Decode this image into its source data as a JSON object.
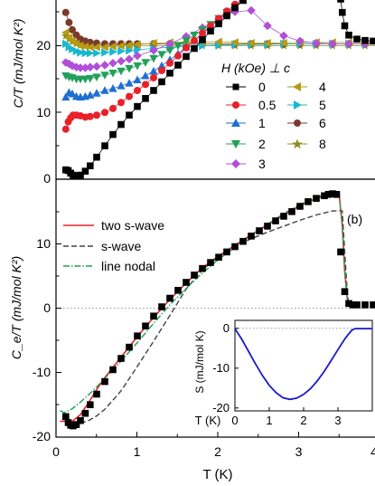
{
  "figure": {
    "x_axis_label": "T (K)",
    "x_ticks": [
      "0",
      "1",
      "2",
      "3",
      "4"
    ]
  },
  "chart_data": [
    {
      "type": "scatter",
      "panel": "top",
      "ylabel": "C/T (mJ/mol K²)",
      "y_ticks": [
        "0",
        "10",
        "20"
      ],
      "xlim": [
        0,
        4
      ],
      "ylim": [
        0,
        27
      ],
      "grid": false,
      "legend_title": "H (kOe) ⊥ c",
      "legend_position": "center-right",
      "series": [
        {
          "name": "0",
          "color": "#000000",
          "marker": "square",
          "x": [
            0.12,
            0.15,
            0.18,
            0.21,
            0.25,
            0.3,
            0.36,
            0.42,
            0.5,
            0.6,
            0.7,
            0.8,
            0.9,
            1.0,
            1.1,
            1.2,
            1.3,
            1.4,
            1.5,
            1.6,
            1.7,
            1.8,
            1.9,
            2.0,
            2.1,
            2.2,
            2.3,
            2.4,
            2.5,
            2.6,
            2.7,
            2.8,
            2.9,
            3.0,
            3.1,
            3.2,
            3.3,
            3.4,
            3.45,
            3.5,
            3.52,
            3.55,
            3.6,
            3.7,
            3.8,
            3.9,
            4.0
          ],
          "y": [
            1.4,
            1.3,
            0.9,
            0.6,
            0.5,
            0.6,
            1.2,
            2.0,
            3.3,
            5.0,
            6.7,
            8.2,
            9.6,
            10.9,
            12.1,
            13.3,
            14.6,
            15.9,
            17.1,
            18.4,
            19.6,
            20.9,
            22.2,
            23.3,
            24.5,
            25.7,
            26.8,
            27.5,
            27.8,
            28.0,
            28.0,
            28.0,
            28.0,
            28.0,
            28.0,
            28.0,
            28.0,
            28.0,
            28.0,
            27.0,
            25.0,
            23.0,
            21.6,
            21.0,
            20.8,
            20.7,
            20.6
          ]
        },
        {
          "name": "0.5",
          "color": "#e8202a",
          "marker": "circle",
          "x": [
            0.12,
            0.15,
            0.18,
            0.21,
            0.25,
            0.3,
            0.36,
            0.42,
            0.5,
            0.6,
            0.7,
            0.8,
            0.9,
            1.0,
            1.1,
            1.2,
            1.3,
            1.4,
            1.5,
            1.6,
            1.7,
            1.8,
            1.9,
            2.0,
            2.1,
            2.2,
            2.3,
            2.4
          ],
          "y": [
            7.5,
            8.6,
            9.2,
            9.6,
            9.6,
            9.5,
            9.3,
            9.4,
            9.6,
            10.0,
            10.6,
            11.5,
            12.4,
            13.3,
            14.2,
            15.2,
            16.3,
            17.4,
            18.5,
            19.7,
            20.8,
            21.9,
            23.0,
            24.1,
            25.2,
            26.2,
            27.2,
            28.0
          ]
        },
        {
          "name": "1",
          "color": "#1f6fd1",
          "marker": "triangle-up",
          "x": [
            0.12,
            0.16,
            0.2,
            0.25,
            0.3,
            0.36,
            0.42,
            0.5,
            0.6,
            0.7,
            0.8,
            0.9,
            1.0,
            1.1,
            1.2,
            1.3,
            1.4,
            1.5,
            1.6,
            1.7,
            1.8,
            1.9,
            2.0,
            2.1,
            2.2,
            2.3,
            2.4
          ],
          "y": [
            12.3,
            13.0,
            12.8,
            12.4,
            12.3,
            12.4,
            12.6,
            12.9,
            13.3,
            13.6,
            14.0,
            14.4,
            14.9,
            15.5,
            16.2,
            17.0,
            17.9,
            18.8,
            19.8,
            20.8,
            21.8,
            22.9,
            23.9,
            24.9,
            25.9,
            26.9,
            27.8
          ]
        },
        {
          "name": "2",
          "color": "#22a05a",
          "marker": "triangle-down",
          "x": [
            0.12,
            0.16,
            0.2,
            0.25,
            0.3,
            0.36,
            0.42,
            0.5,
            0.6,
            0.7,
            0.8,
            0.9,
            1.0,
            1.1,
            1.2,
            1.3,
            1.4,
            1.5,
            1.6,
            1.7,
            1.8,
            1.9,
            2.0,
            2.1,
            2.2,
            2.3,
            2.4
          ],
          "y": [
            15.5,
            15.3,
            15.2,
            15.0,
            15.0,
            15.0,
            15.1,
            15.3,
            15.6,
            15.9,
            16.2,
            16.6,
            17.0,
            17.5,
            18.1,
            18.7,
            19.3,
            20.0,
            20.8,
            21.6,
            22.4,
            23.2,
            24.1,
            25.0,
            25.9,
            26.9,
            27.8
          ]
        },
        {
          "name": "3",
          "color": "#b04fd8",
          "marker": "diamond",
          "x": [
            0.12,
            0.16,
            0.2,
            0.25,
            0.3,
            0.36,
            0.42,
            0.5,
            0.6,
            0.7,
            0.8,
            0.9,
            1.0,
            1.2,
            1.4,
            1.6,
            1.8,
            2.0,
            2.2,
            2.4,
            2.6,
            2.8,
            3.0,
            3.2,
            3.4,
            3.6,
            3.8,
            4.0
          ],
          "y": [
            17.5,
            17.3,
            17.0,
            16.8,
            16.7,
            16.7,
            16.8,
            16.9,
            17.1,
            17.4,
            17.7,
            18.0,
            18.5,
            19.3,
            20.3,
            21.4,
            22.7,
            24.0,
            25.1,
            25.3,
            23.0,
            21.5,
            20.7,
            20.4,
            20.3,
            20.3,
            20.3,
            20.3
          ]
        },
        {
          "name": "4",
          "color": "#b59a12",
          "marker": "triangle-left",
          "x": [
            0.12,
            0.16,
            0.2,
            0.25,
            0.3,
            0.36,
            0.42,
            0.5,
            0.6,
            0.7,
            0.8,
            0.9,
            1.0,
            1.2,
            1.4,
            1.6,
            1.8,
            2.0,
            2.2,
            2.4,
            2.6,
            2.8,
            3.0,
            3.2,
            3.4,
            3.6,
            3.8,
            4.0
          ],
          "y": [
            22.0,
            21.2,
            20.7,
            20.3,
            20.0,
            19.9,
            19.8,
            19.8,
            19.8,
            19.9,
            20.0,
            20.1,
            20.2,
            20.4,
            20.5,
            20.6,
            20.6,
            20.6,
            20.5,
            20.4,
            20.4,
            20.4,
            20.5,
            20.5,
            20.5,
            20.5,
            20.5,
            20.5
          ]
        },
        {
          "name": "5",
          "color": "#18b8cf",
          "marker": "triangle-right",
          "x": [
            0.12,
            0.16,
            0.2,
            0.25,
            0.3,
            0.36,
            0.42,
            0.5,
            0.6,
            0.7,
            0.8,
            0.9,
            1.0,
            1.2,
            1.4,
            1.6,
            1.8,
            2.0,
            2.2,
            2.4,
            2.6,
            2.8,
            3.0,
            3.2,
            3.4,
            3.6,
            3.8,
            4.0
          ],
          "y": [
            20.3,
            19.8,
            19.5,
            19.2,
            19.0,
            18.9,
            18.9,
            18.9,
            19.0,
            19.1,
            19.2,
            19.3,
            19.4,
            19.6,
            19.8,
            19.9,
            20.0,
            20.1,
            20.2,
            20.2,
            20.2,
            20.3,
            20.3,
            20.3,
            20.3,
            20.3,
            20.3,
            20.3
          ]
        },
        {
          "name": "6",
          "color": "#7a3b2e",
          "marker": "circle",
          "x": [
            0.12,
            0.16,
            0.2,
            0.25,
            0.3,
            0.36,
            0.42,
            0.5,
            0.6,
            0.7,
            0.8,
            0.9,
            1.0,
            1.2,
            1.4,
            1.6,
            1.8,
            2.0,
            2.2,
            2.4,
            2.6,
            2.8,
            3.0,
            3.2,
            3.4,
            3.6,
            3.8,
            4.0
          ],
          "y": [
            25.0,
            23.5,
            22.4,
            21.6,
            21.0,
            20.7,
            20.5,
            20.4,
            20.3,
            20.3,
            20.3,
            20.3,
            20.3,
            20.3,
            20.3,
            20.3,
            20.3,
            20.3,
            20.3,
            20.3,
            20.3,
            20.3,
            20.3,
            20.3,
            20.3,
            20.3,
            20.3,
            20.3
          ]
        },
        {
          "name": "8",
          "color": "#8f8a1e",
          "marker": "star",
          "x": [
            0.12,
            0.16,
            0.2,
            0.25,
            0.3,
            0.36,
            0.42,
            0.5,
            0.6,
            0.7,
            0.8,
            0.9,
            1.0,
            1.2,
            1.4,
            1.6,
            1.8,
            2.0,
            2.2,
            2.4,
            2.6,
            2.8,
            3.0,
            3.2,
            3.4,
            3.6,
            3.8,
            4.0
          ],
          "y": [
            21.5,
            21.0,
            20.6,
            20.3,
            20.1,
            20.0,
            20.0,
            20.0,
            20.0,
            20.0,
            20.0,
            20.0,
            20.0,
            20.0,
            20.0,
            20.0,
            20.0,
            20.0,
            20.0,
            20.0,
            20.0,
            20.0,
            20.0,
            20.0,
            20.0,
            20.0,
            20.0,
            20.0
          ]
        }
      ]
    },
    {
      "type": "line",
      "panel": "bottom",
      "panel_label": "(b)",
      "ylabel": "C_e/T (mJ/mol K²)",
      "y_ticks": [
        "-20",
        "-10",
        "0",
        "10"
      ],
      "xlim": [
        0,
        4
      ],
      "ylim": [
        -20,
        19
      ],
      "grid": false,
      "zero_line": "dotted",
      "legend_position": "top-left",
      "data_points": {
        "name": "",
        "color": "#000000",
        "marker": "square",
        "x": [
          0.12,
          0.15,
          0.18,
          0.21,
          0.25,
          0.3,
          0.36,
          0.42,
          0.5,
          0.6,
          0.7,
          0.8,
          0.9,
          1.0,
          1.1,
          1.2,
          1.3,
          1.4,
          1.5,
          1.6,
          1.7,
          1.8,
          1.9,
          2.0,
          2.1,
          2.2,
          2.3,
          2.4,
          2.5,
          2.6,
          2.7,
          2.8,
          2.9,
          3.0,
          3.1,
          3.2,
          3.3,
          3.35,
          3.4,
          3.45,
          3.5,
          3.55,
          3.6,
          3.65,
          3.7,
          3.8,
          3.9,
          4.0
        ],
        "y": [
          -16.9,
          -17.8,
          -18.2,
          -18.3,
          -18.1,
          -17.5,
          -16.4,
          -15.1,
          -13.5,
          -11.6,
          -9.8,
          -8.1,
          -6.4,
          -4.7,
          -3.2,
          -1.7,
          -0.3,
          1.0,
          2.2,
          3.4,
          4.5,
          5.5,
          6.4,
          7.2,
          8.0,
          8.8,
          9.6,
          10.4,
          11.2,
          11.9,
          12.7,
          13.4,
          14.1,
          14.9,
          15.6,
          16.1,
          16.5,
          16.7,
          16.8,
          16.7,
          8.0,
          2.0,
          0.2,
          0.0,
          0.0,
          0.0,
          0.0,
          0.0
        ]
      },
      "series": [
        {
          "name": "two s-wave",
          "color": "#e8202a",
          "style": "solid",
          "x": [
            0.05,
            0.1,
            0.2,
            0.3,
            0.4,
            0.5,
            0.6,
            0.8,
            1.0,
            1.2,
            1.4,
            1.6,
            1.8,
            2.0,
            2.2,
            2.4,
            2.6,
            2.8,
            3.0,
            3.2,
            3.4,
            3.48,
            3.52,
            3.55,
            3.58,
            3.6
          ],
          "y": [
            -17.6,
            -17.6,
            -17.6,
            -16.6,
            -14.8,
            -12.8,
            -11.0,
            -7.9,
            -4.8,
            -1.9,
            0.8,
            3.3,
            5.6,
            7.4,
            9.0,
            10.6,
            12.1,
            13.6,
            15.0,
            16.1,
            16.7,
            16.8,
            12.0,
            5.0,
            1.0,
            0.0
          ]
        },
        {
          "name": "s-wave",
          "color": "#444444",
          "style": "dashed",
          "x": [
            0.2,
            0.3,
            0.4,
            0.5,
            0.6,
            0.8,
            1.0,
            1.2,
            1.4,
            1.6,
            1.8,
            2.0,
            2.2,
            2.4,
            2.6,
            2.8,
            3.0,
            3.2,
            3.4,
            3.52,
            3.55,
            3.58,
            3.6
          ],
          "y": [
            -18.0,
            -17.9,
            -17.5,
            -16.8,
            -15.8,
            -13.0,
            -9.3,
            -5.5,
            -1.6,
            2.4,
            5.3,
            7.3,
            8.8,
            10.0,
            11.0,
            11.9,
            12.8,
            13.6,
            14.2,
            14.2,
            8.0,
            2.0,
            0.0
          ]
        },
        {
          "name": "line nodal",
          "color": "#22a05a",
          "style": "dashdot",
          "x": [
            0.05,
            0.1,
            0.2,
            0.3,
            0.4,
            0.5,
            0.6,
            0.8,
            1.0,
            1.2,
            1.4,
            1.6,
            1.8,
            2.0,
            2.2,
            2.4,
            2.6,
            2.8,
            3.0,
            3.2,
            3.4,
            3.48,
            3.52,
            3.55,
            3.58,
            3.6
          ],
          "y": [
            -16.0,
            -16.3,
            -15.7,
            -14.7,
            -13.6,
            -12.4,
            -11.1,
            -8.5,
            -5.7,
            -2.8,
            0.0,
            2.5,
            4.8,
            6.9,
            8.7,
            10.5,
            12.2,
            13.8,
            15.2,
            16.3,
            16.9,
            17.0,
            12.0,
            5.0,
            1.0,
            0.0
          ]
        }
      ]
    },
    {
      "type": "line",
      "panel": "inset",
      "xlabel": "T (K)",
      "ylabel": "S (mJ/mol K)",
      "x_ticks": [
        "0",
        "1",
        "2",
        "3"
      ],
      "y_ticks": [
        "0",
        "-10",
        "-20"
      ],
      "xlim": [
        0,
        4
      ],
      "ylim": [
        -20,
        2
      ],
      "grid": false,
      "zero_line": "dotted",
      "series": [
        {
          "name": "",
          "color": "#1a1acc",
          "style": "solid",
          "x": [
            0,
            0.2,
            0.4,
            0.6,
            0.8,
            1.0,
            1.2,
            1.4,
            1.6,
            1.8,
            2.0,
            2.2,
            2.4,
            2.6,
            2.8,
            3.0,
            3.2,
            3.4,
            3.5,
            3.6,
            3.8,
            4.0
          ],
          "y": [
            0,
            -2.6,
            -5.6,
            -8.6,
            -11.4,
            -13.8,
            -15.6,
            -16.8,
            -17.2,
            -16.9,
            -16.0,
            -14.6,
            -12.7,
            -10.4,
            -7.8,
            -5.1,
            -2.5,
            -0.4,
            0,
            0,
            0,
            0
          ]
        }
      ]
    }
  ]
}
